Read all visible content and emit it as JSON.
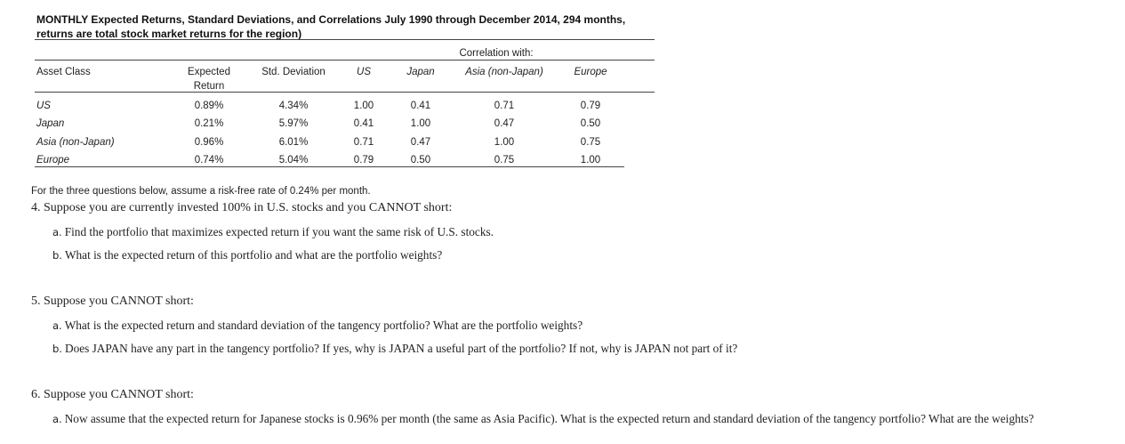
{
  "title_line1": "MONTHLY Expected Returns, Standard Deviations, and Correlations July 1990 through December 2014, 294 months,",
  "title_line2": "returns are total stock market returns for the region)",
  "table": {
    "correlation_header": "Correlation with:",
    "columns": {
      "asset_class": "Asset Class",
      "expected_line1": "Expected",
      "expected_line2": "Return",
      "std_dev": "Std. Deviation",
      "us": "US",
      "japan": "Japan",
      "asia": "Asia (non-Japan)",
      "europe": "Europe"
    },
    "rows": [
      {
        "name": "US",
        "expected": "0.89%",
        "std": "4.34%",
        "us": "1.00",
        "japan": "0.41",
        "asia": "0.71",
        "europe": "0.79"
      },
      {
        "name": "Japan",
        "expected": "0.21%",
        "std": "5.97%",
        "us": "0.41",
        "japan": "1.00",
        "asia": "0.47",
        "europe": "0.50"
      },
      {
        "name": "Asia (non-Japan)",
        "expected": "0.96%",
        "std": "6.01%",
        "us": "0.71",
        "japan": "0.47",
        "asia": "1.00",
        "europe": "0.75"
      },
      {
        "name": "Europe",
        "expected": "0.74%",
        "std": "5.04%",
        "us": "0.79",
        "japan": "0.50",
        "asia": "0.75",
        "europe": "1.00"
      }
    ]
  },
  "instructions": "For the three questions below, assume a risk-free rate of 0.24% per month.",
  "questions": [
    {
      "text": "4. Suppose you are currently invested 100% in U.S. stocks and you CANNOT short:",
      "parts": [
        {
          "label": "a.",
          "text": "Find the portfolio that maximizes expected return if you want the same risk of U.S. stocks."
        },
        {
          "label": "b.",
          "text": "What is the expected return of this portfolio and what are the portfolio weights?"
        }
      ]
    },
    {
      "text": "5. Suppose you CANNOT short:",
      "parts": [
        {
          "label": "a.",
          "text": "What is the expected return and standard deviation of the tangency portfolio? What are the portfolio weights?"
        },
        {
          "label": "b.",
          "text": "Does JAPAN have any part in the tangency portfolio? If yes, why is JAPAN a useful part of the portfolio? If not, why is JAPAN not part of it?"
        }
      ]
    },
    {
      "text": "6. Suppose you CANNOT short:",
      "parts": [
        {
          "label": "a.",
          "text": "Now assume that the expected return for Japanese stocks is 0.96% per month (the same as Asia Pacific). What is the expected return and standard deviation of the tangency portfolio? What are the weights?"
        }
      ]
    }
  ]
}
